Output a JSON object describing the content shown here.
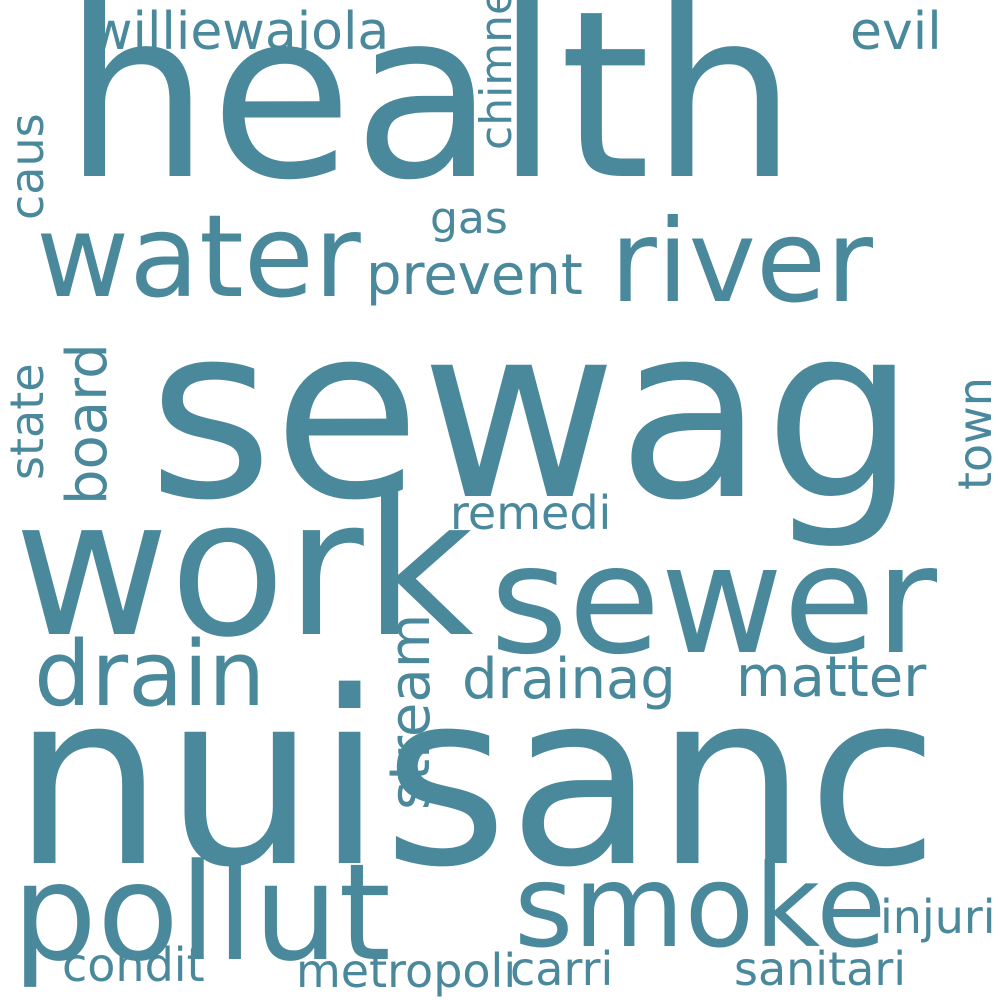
{
  "colors": {
    "background": "#ffffff",
    "word": "#4a889c"
  },
  "words": [
    "health",
    "sewag",
    "nuisanc",
    "work",
    "sewer",
    "water",
    "river",
    "pollut",
    "smoke",
    "drain",
    "williewaiola",
    "evil",
    "gas",
    "prevent",
    "remedi",
    "drainag",
    "matter",
    "injuri",
    "condit",
    "metropoli",
    "carri",
    "sanitari",
    "chimney",
    "caus",
    "state",
    "board",
    "town",
    "stream"
  ]
}
